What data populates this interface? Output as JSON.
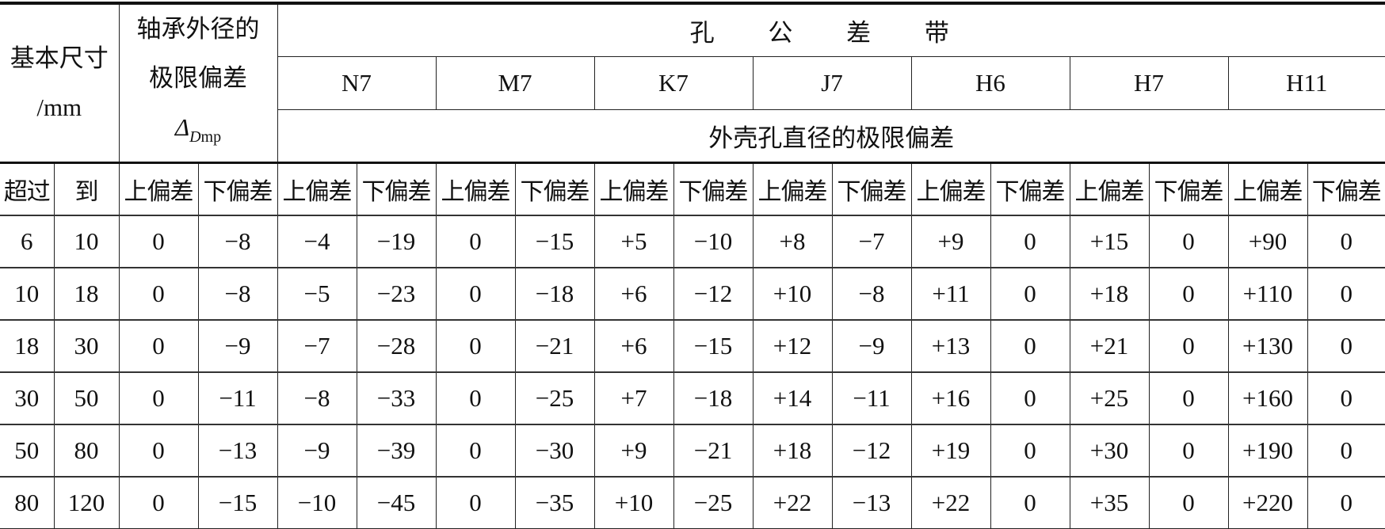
{
  "header": {
    "basic_size": "基本尺寸",
    "basic_size_unit": "/mm",
    "bearing_od_line1": "轴承外径的",
    "bearing_od_line2": "极限偏差",
    "bearing_od_symbol": "Δ",
    "bearing_od_symbol_sub_italic": "D",
    "bearing_od_symbol_sub": "mp",
    "hole_tolerance_zone": "孔 公 差 带",
    "zones": [
      "N7",
      "M7",
      "K7",
      "J7",
      "H6",
      "H7",
      "H11"
    ],
    "housing_deviation": "外壳孔直径的极限偏差",
    "over": "超过",
    "to": "到",
    "upper": "上偏差",
    "lower": "下偏差"
  },
  "rows": [
    [
      "6",
      "10",
      "0",
      "−8",
      "−4",
      "−19",
      "0",
      "−15",
      "+5",
      "−10",
      "+8",
      "−7",
      "+9",
      "0",
      "+15",
      "0",
      "+90",
      "0"
    ],
    [
      "10",
      "18",
      "0",
      "−8",
      "−5",
      "−23",
      "0",
      "−18",
      "+6",
      "−12",
      "+10",
      "−8",
      "+11",
      "0",
      "+18",
      "0",
      "+110",
      "0"
    ],
    [
      "18",
      "30",
      "0",
      "−9",
      "−7",
      "−28",
      "0",
      "−21",
      "+6",
      "−15",
      "+12",
      "−9",
      "+13",
      "0",
      "+21",
      "0",
      "+130",
      "0"
    ],
    [
      "30",
      "50",
      "0",
      "−11",
      "−8",
      "−33",
      "0",
      "−25",
      "+7",
      "−18",
      "+14",
      "−11",
      "+16",
      "0",
      "+25",
      "0",
      "+160",
      "0"
    ],
    [
      "50",
      "80",
      "0",
      "−13",
      "−9",
      "−39",
      "0",
      "−30",
      "+9",
      "−21",
      "+18",
      "−12",
      "+19",
      "0",
      "+30",
      "0",
      "+190",
      "0"
    ],
    [
      "80",
      "120",
      "0",
      "−15",
      "−10",
      "−45",
      "0",
      "−35",
      "+10",
      "−25",
      "+22",
      "−13",
      "+22",
      "0",
      "+35",
      "0",
      "+220",
      "0"
    ]
  ]
}
